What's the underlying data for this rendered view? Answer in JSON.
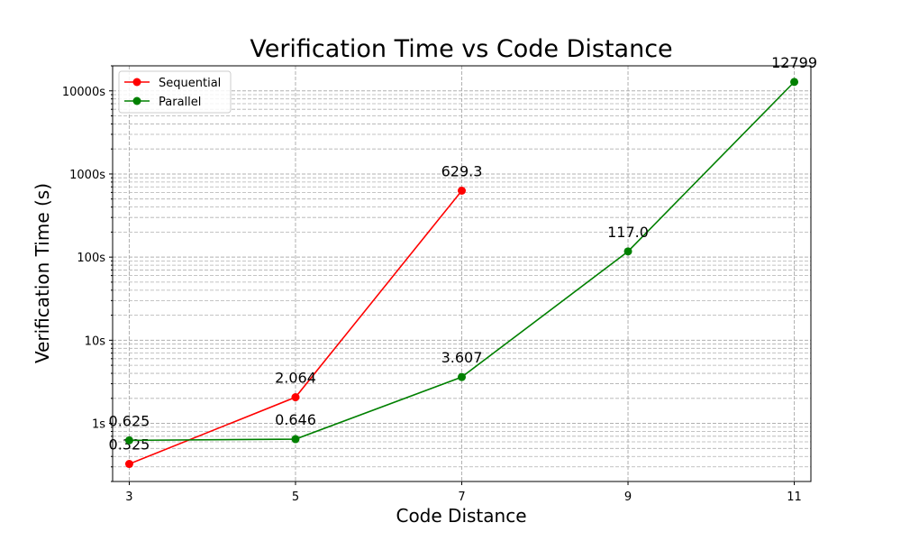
{
  "chart_data": {
    "type": "line",
    "title": "Verification Time vs Code Distance",
    "xlabel": "Code Distance",
    "ylabel": "Verification Time (s)",
    "x_ticks": [
      3,
      5,
      7,
      9,
      11
    ],
    "x_tick_labels": [
      "3",
      "5",
      "7",
      "9",
      "11"
    ],
    "y_scale": "log",
    "y_ticks": [
      1,
      10,
      100,
      1000,
      10000
    ],
    "y_tick_labels": [
      "1s",
      "10s",
      "100s",
      "1000s",
      "10000s"
    ],
    "grid": true,
    "legend_position": "top-left",
    "series": [
      {
        "name": "Sequential",
        "color": "#ff0000",
        "x": [
          3,
          5,
          7
        ],
        "values": [
          0.325,
          2.064,
          629.3
        ],
        "labels": [
          "0.325",
          "2.064",
          "629.3"
        ]
      },
      {
        "name": "Parallel",
        "color": "#008000",
        "x": [
          3,
          5,
          7,
          9,
          11
        ],
        "values": [
          0.625,
          0.646,
          3.607,
          117.0,
          12799
        ],
        "labels": [
          "0.625",
          "0.646",
          "3.607",
          "117.0",
          "12799"
        ]
      }
    ]
  }
}
